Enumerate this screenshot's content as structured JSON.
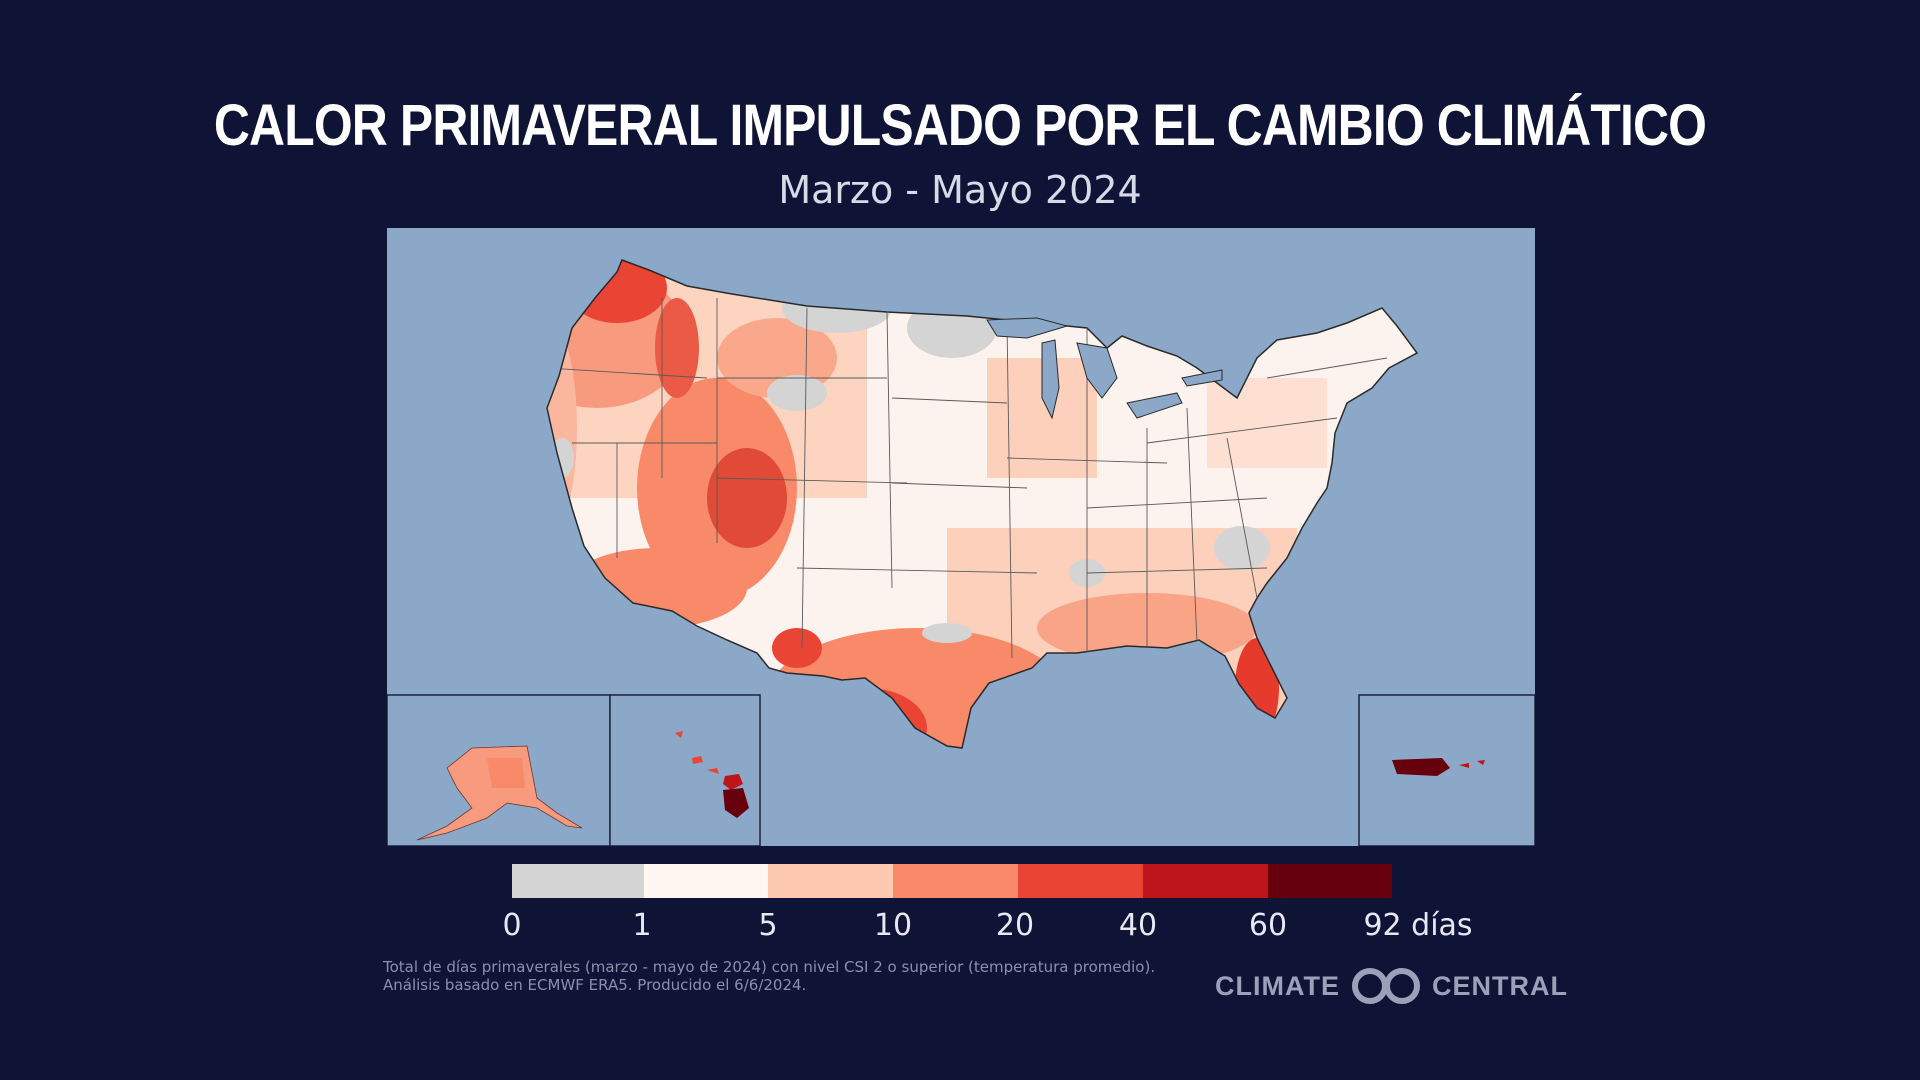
{
  "title": "CALOR PRIMAVERAL IMPULSADO POR EL CAMBIO CLIMÁTICO",
  "subtitle": "Marzo - Mayo 2024",
  "legend": {
    "ticks": [
      "0",
      "1",
      "5",
      "10",
      "20",
      "40",
      "60",
      "92 días"
    ],
    "colors": [
      "#d4d4d4",
      "#fff6f2",
      "#fdc9b0",
      "#f88a6a",
      "#ea4435",
      "#bd1519",
      "#67000d"
    ]
  },
  "colors": {
    "background": "#0f1437",
    "ocean": "#8ba8c9",
    "border": "#4a4a4a"
  },
  "footnote": {
    "line1": "Total de días primaverales (marzo - mayo de 2024) con nivel CSI 2 o superior (temperatura promedio).",
    "line2": "Análisis basado en ECMWF ERA5. Producido el 6/6/2024."
  },
  "brand": {
    "left": "CLIMATE",
    "right": "CENTRAL"
  }
}
